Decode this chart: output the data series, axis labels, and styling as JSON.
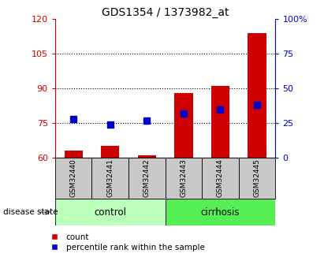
{
  "title": "GDS1354 / 1373982_at",
  "samples": [
    "GSM32440",
    "GSM32441",
    "GSM32442",
    "GSM32443",
    "GSM32444",
    "GSM32445"
  ],
  "count_values": [
    63,
    65,
    61,
    88,
    91,
    114
  ],
  "percentile_values": [
    28,
    24,
    27,
    32,
    35,
    38
  ],
  "ylim_left": [
    60,
    120
  ],
  "ylim_right": [
    0,
    100
  ],
  "yticks_left": [
    60,
    75,
    90,
    105,
    120
  ],
  "yticks_right": [
    0,
    25,
    50,
    75,
    100
  ],
  "ytick_labels_left": [
    "60",
    "75",
    "90",
    "105",
    "120"
  ],
  "ytick_labels_right": [
    "0",
    "25",
    "50",
    "75",
    "100%"
  ],
  "bar_color": "#cc0000",
  "dot_color": "#0000cc",
  "control_color": "#bbffbb",
  "cirrhosis_color": "#55ee55",
  "bar_bottom": 60,
  "bar_width": 0.5,
  "grid_lines": [
    75,
    90,
    105
  ],
  "n_control": 3,
  "n_cirrhosis": 3
}
